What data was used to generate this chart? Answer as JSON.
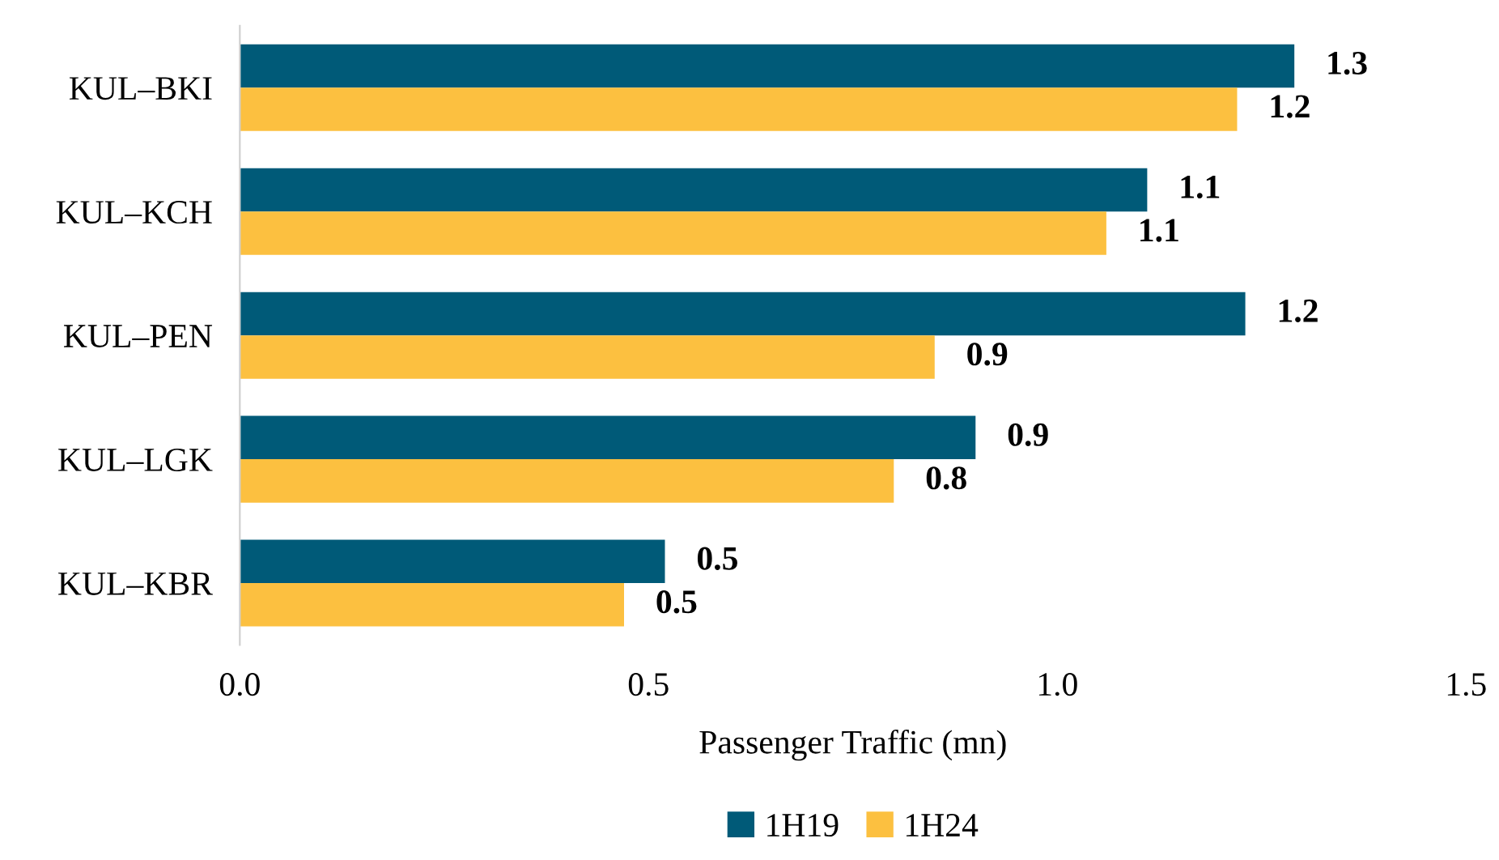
{
  "chart_data": {
    "type": "bar",
    "orientation": "horizontal",
    "xlabel": "Passenger Traffic (mn)",
    "categories": [
      "KUL–BKI",
      "KUL–KCH",
      "KUL–PEN",
      "KUL–LGK",
      "KUL–KBR"
    ],
    "series": [
      {
        "name": "1H19",
        "color": "#005a78",
        "values": [
          1.29,
          1.11,
          1.23,
          0.9,
          0.52
        ],
        "value_labels": [
          "1.3",
          "1.1",
          "1.2",
          "0.9",
          "0.5"
        ]
      },
      {
        "name": "1H24",
        "color": "#fcc040",
        "values": [
          1.22,
          1.06,
          0.85,
          0.8,
          0.47
        ],
        "value_labels": [
          "1.2",
          "1.1",
          "0.9",
          "0.8",
          "0.5"
        ]
      }
    ],
    "xlim": [
      0,
      1.5
    ],
    "xticks": [
      {
        "value": 0,
        "label": "0.0"
      },
      0.5,
      {
        "value": 1.0,
        "label": "1.0"
      },
      1.5
    ],
    "grid": false,
    "legend": "bottom"
  }
}
